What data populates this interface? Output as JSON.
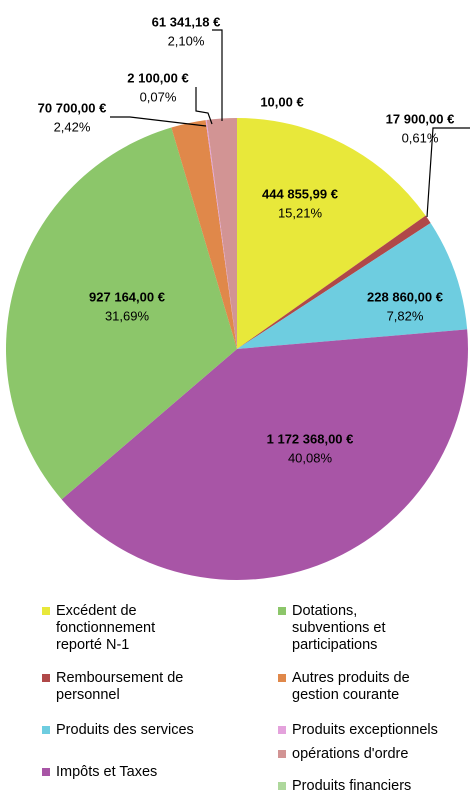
{
  "chart_data": {
    "type": "pie",
    "categories": [
      "Excédent de fonctionnement reporté N-1",
      "Remboursement de personnel",
      "Produits des services",
      "Impôts et Taxes",
      "Dotations, subventions et participations",
      "Autres produits de gestion courante",
      "Produits exceptionnels",
      "opérations d'ordre",
      "Produits financiers"
    ],
    "values": [
      444855.99,
      17900,
      228860,
      1172368,
      927164,
      70700,
      2100,
      61341.18,
      10
    ],
    "value_labels": [
      "444 855,99 €",
      "17 900,00 €",
      "228 860,00 €",
      "1 172 368,00 €",
      "927 164,00 €",
      "70 700,00 €",
      "2 100,00 €",
      "61 341,18 €",
      "10,00 €"
    ],
    "percent_labels": [
      "15,21%",
      "0,61%",
      "7,82%",
      "40,08%",
      "31,69%",
      "2,42%",
      "0,07%",
      "2,10%",
      null
    ],
    "colors": [
      "#e8e83a",
      "#b04848",
      "#6ecde0",
      "#a855a6",
      "#8cc66a",
      "#e0884a",
      "#e4a2dc",
      "#d29494",
      "#aed89c"
    ]
  }
}
